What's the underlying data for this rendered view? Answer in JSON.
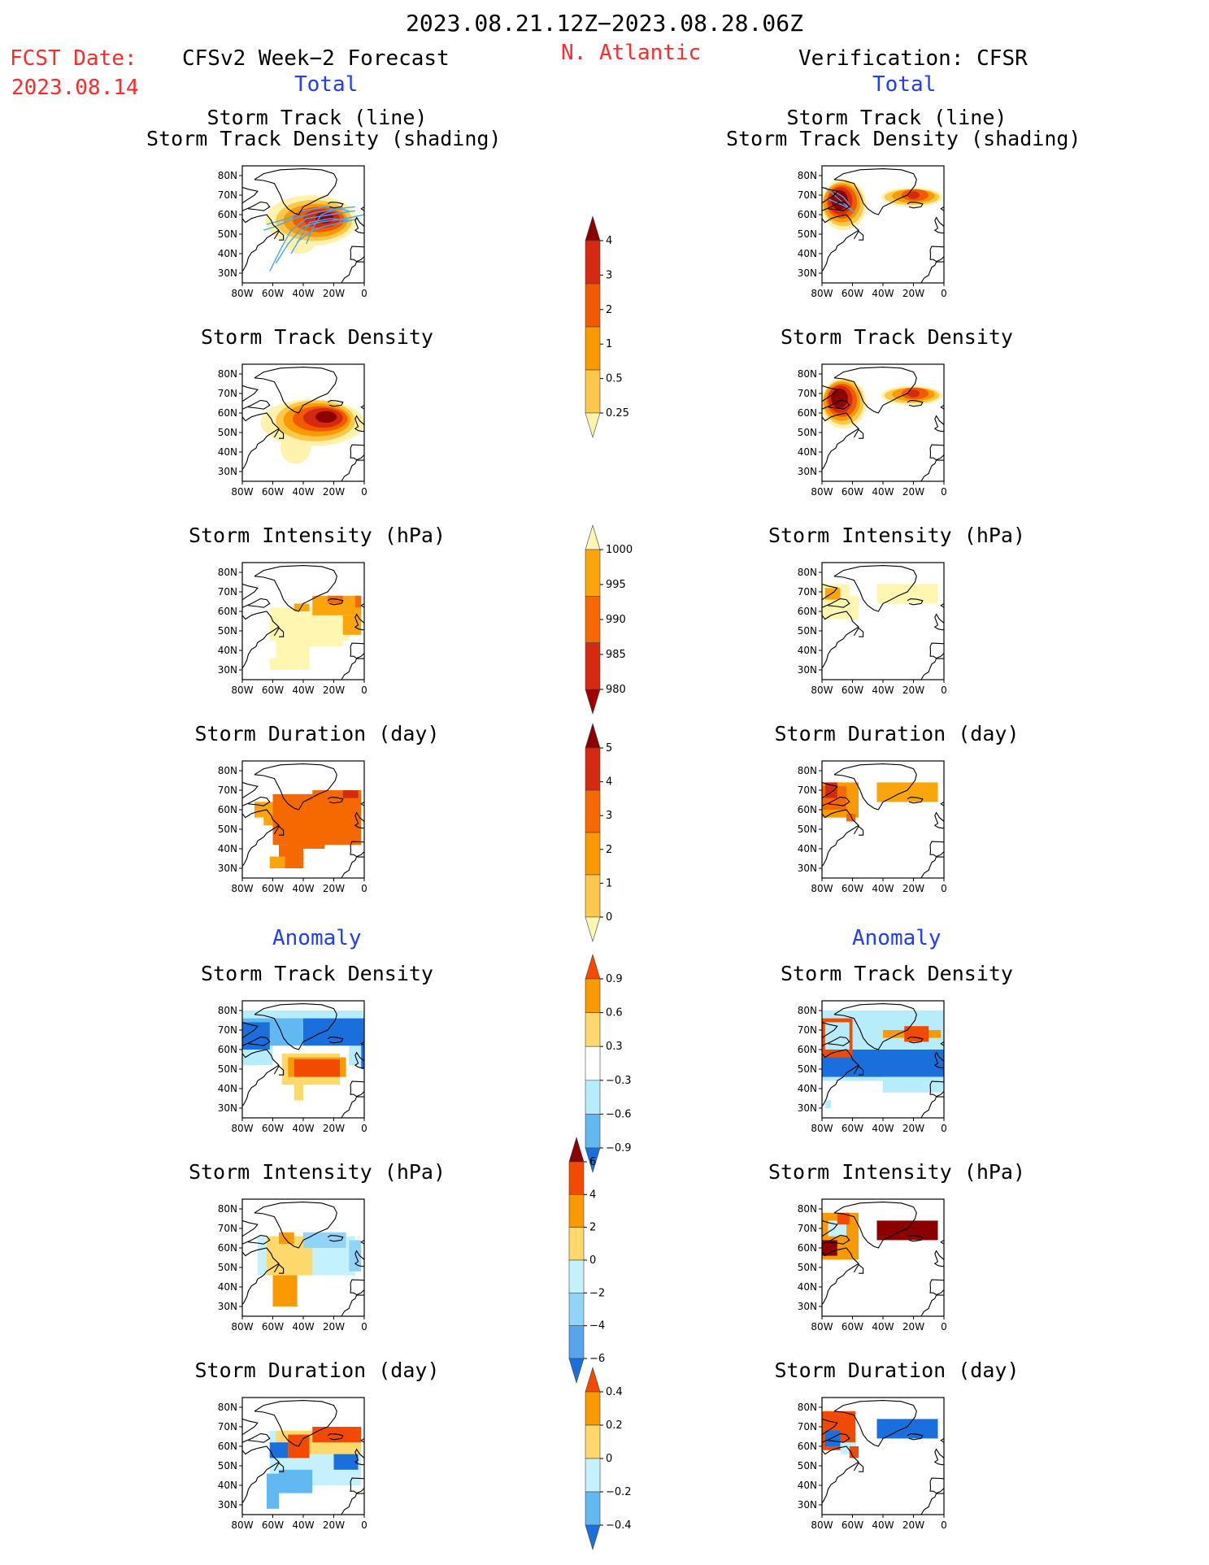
{
  "header": {
    "period": "2023.08.21.12Z−2023.08.28.06Z",
    "region": "N. Atlantic",
    "fcst_label": "FCST Date:",
    "fcst_date": "2023.08.14",
    "left_title": "CFSv2 Week−2 Forecast",
    "right_title": "Verification: CFSR",
    "total_label": "Total",
    "anomaly_label": "Anomaly"
  },
  "panel_titles": {
    "track_line": "Storm Track (line)",
    "track_density_shading": "Storm Track Density (shading)",
    "track_density": "Storm Track Density",
    "intensity": "Storm Intensity (hPa)",
    "duration": "Storm Duration (day)"
  },
  "axes": {
    "lat_ticks": [
      "80N",
      "70N",
      "60N",
      "50N",
      "40N",
      "30N"
    ],
    "lon_ticks": [
      "80W",
      "60W",
      "40W",
      "20W",
      "0"
    ]
  },
  "colorbars": [
    {
      "id": "density_total",
      "labels": [
        "4",
        "3",
        "2",
        "1",
        "0.5",
        "0.25"
      ],
      "colors": [
        "#8b0000",
        "#d42a10",
        "#f25a00",
        "#f99a00",
        "#fcc84a",
        "#fff2ad"
      ]
    },
    {
      "id": "intensity_total",
      "labels": [
        "1000",
        "995",
        "990",
        "985",
        "980"
      ],
      "colors": [
        "#fff6b2",
        "#f9a50b",
        "#f56900",
        "#d42a10",
        "#a00000"
      ]
    },
    {
      "id": "duration_total",
      "labels": [
        "5",
        "4",
        "3",
        "2",
        "1",
        "0"
      ],
      "colors": [
        "#8b0000",
        "#d42a10",
        "#f56900",
        "#f99a00",
        "#fcc84a",
        "#fff6b2"
      ]
    },
    {
      "id": "density_anom",
      "labels": [
        "0.9",
        "0.6",
        "0.3",
        "−0.3",
        "−0.6",
        "−0.9"
      ],
      "colors": [
        "#f74a00",
        "#f99a00",
        "#fcd96a",
        "#ffffff",
        "#b7ecfb",
        "#62b8f0",
        "#1a6fdc"
      ]
    },
    {
      "id": "intensity_anom",
      "labels": [
        "6",
        "4",
        "2",
        "0",
        "−2",
        "−4",
        "−6"
      ],
      "colors": [
        "#8b0000",
        "#f24a00",
        "#f99a00",
        "#fcd96a",
        "#c5f1fd",
        "#91d4f7",
        "#58a4ee",
        "#1a6fdc"
      ]
    },
    {
      "id": "duration_anom",
      "labels": [
        "0.4",
        "0.2",
        "0",
        "−0.2",
        "−0.4"
      ],
      "colors": [
        "#f24a00",
        "#f99a00",
        "#fcd96a",
        "#c5f1fd",
        "#62b8f0",
        "#1a6fdc"
      ]
    }
  ]
}
